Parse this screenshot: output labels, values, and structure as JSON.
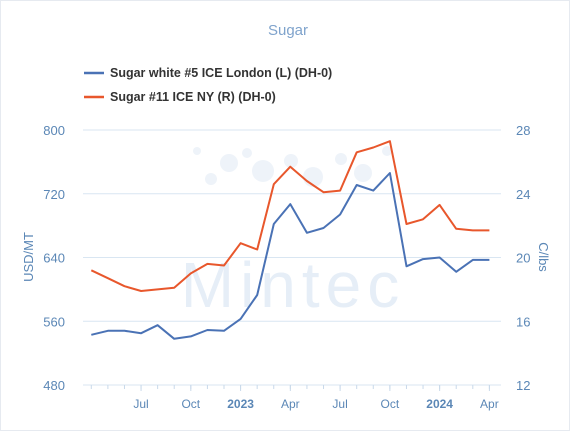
{
  "chart_data": {
    "type": "line",
    "title": "Sugar",
    "watermark": "Mintec",
    "ylabel_left": "USD/MT",
    "ylabel_right": "C/lbs",
    "left_axis": {
      "ylim": [
        480,
        800
      ],
      "ticks": [
        480,
        560,
        640,
        720,
        800
      ]
    },
    "right_axis": {
      "ylim": [
        12,
        28
      ],
      "ticks": [
        12,
        16,
        20,
        24,
        28
      ]
    },
    "x_labels": [
      {
        "label": "Jul",
        "month_index": 3,
        "bold": false
      },
      {
        "label": "Oct",
        "month_index": 6,
        "bold": false
      },
      {
        "label": "2023",
        "month_index": 9,
        "bold": true
      },
      {
        "label": "Apr",
        "month_index": 12,
        "bold": false
      },
      {
        "label": "Jul",
        "month_index": 15,
        "bold": false
      },
      {
        "label": "Oct",
        "month_index": 18,
        "bold": false
      },
      {
        "label": "2024",
        "month_index": 21,
        "bold": true
      },
      {
        "label": "Apr",
        "month_index": 24,
        "bold": false
      }
    ],
    "x_month_range": [
      -0.5,
      24.7
    ],
    "grid": true,
    "legend_position": "top-left",
    "series": [
      {
        "name": "Sugar white #5 ICE London (L) (DH-0)",
        "axis": "left",
        "color": "#4a72b5",
        "x": [
          0,
          1,
          2,
          3,
          4,
          5,
          6,
          7,
          8,
          9,
          10,
          11,
          12,
          13,
          14,
          15,
          16,
          17,
          18,
          19,
          20,
          21,
          22,
          23,
          24
        ],
        "values": [
          543,
          548,
          548,
          545,
          555,
          538,
          541,
          549,
          548,
          563,
          593,
          682,
          707,
          671,
          677,
          694,
          731,
          724,
          746,
          629,
          638,
          640,
          622,
          637,
          637
        ]
      },
      {
        "name": "Sugar #11 ICE NY (R) (DH-0)",
        "axis": "right",
        "color": "#e8572c",
        "x": [
          0,
          1,
          2,
          3,
          4,
          5,
          6,
          7,
          8,
          9,
          10,
          11,
          12,
          13,
          14,
          15,
          16,
          17,
          18,
          19,
          20,
          21,
          22,
          23,
          24
        ],
        "values": [
          19.2,
          18.7,
          18.2,
          17.9,
          18.0,
          18.1,
          19.0,
          19.6,
          19.5,
          20.9,
          20.5,
          24.6,
          25.7,
          24.8,
          24.1,
          24.2,
          26.6,
          26.9,
          27.3,
          22.1,
          22.4,
          23.3,
          21.8,
          21.7,
          21.7
        ]
      }
    ]
  }
}
